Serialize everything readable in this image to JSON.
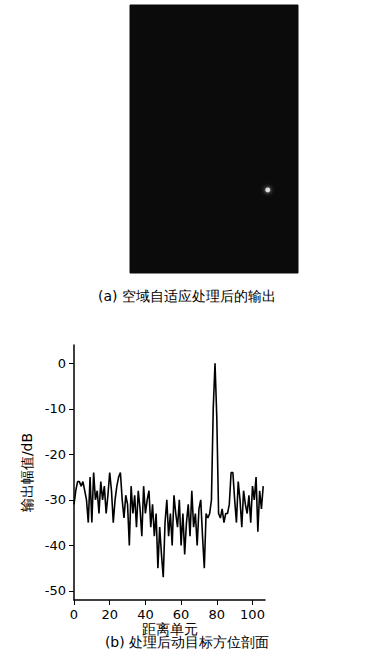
{
  "chart_data": [
    {
      "type": "scatter",
      "title": "(a) 空域自适应处理后的输出",
      "x": [
        82
      ],
      "values": [
        31
      ],
      "xlim": [
        0,
        100
      ],
      "ylim": [
        0,
        100
      ],
      "tick_labels": false,
      "grid": false,
      "color": "#ffffff"
    },
    {
      "type": "line",
      "title": "(b) 处理后动目标方位剖面",
      "x_label": "距离单元",
      "y_label": "输出幅值/dB",
      "x": [
        0,
        1,
        2,
        3,
        4,
        5,
        6,
        7,
        8,
        9,
        10,
        11,
        12,
        13,
        14,
        15,
        16,
        17,
        18,
        19,
        20,
        21,
        22,
        23,
        24,
        25,
        26,
        27,
        28,
        29,
        30,
        31,
        32,
        33,
        34,
        35,
        36,
        37,
        38,
        39,
        40,
        41,
        42,
        43,
        44,
        45,
        46,
        47,
        48,
        49,
        50,
        51,
        52,
        53,
        54,
        55,
        56,
        57,
        58,
        59,
        60,
        61,
        62,
        63,
        64,
        65,
        66,
        67,
        68,
        69,
        70,
        71,
        72,
        73,
        74,
        75,
        76,
        77,
        78,
        79,
        80,
        81,
        82,
        83,
        84,
        85,
        86,
        87,
        88,
        89,
        90,
        91,
        92,
        93,
        94,
        95,
        96,
        97,
        98,
        99,
        100,
        101,
        102,
        103,
        104,
        105,
        106
      ],
      "values": [
        -31,
        -28,
        -26,
        -26,
        -27,
        -26,
        -28,
        -30,
        -35,
        -25,
        -35,
        -24,
        -30,
        -28,
        -33,
        -26,
        -30,
        -27,
        -33,
        -29,
        -24,
        -28,
        -35,
        -30,
        -27,
        -25,
        -24,
        -30,
        -34,
        -29,
        -31,
        -40,
        -27,
        -33,
        -29,
        -36,
        -28,
        -32,
        -38,
        -27,
        -33,
        -30,
        -28,
        -36,
        -31,
        -38,
        -33,
        -45,
        -36,
        -42,
        -47,
        -35,
        -30,
        -38,
        -33,
        -40,
        -29,
        -33,
        -36,
        -30,
        -40,
        -33,
        -42,
        -35,
        -31,
        -38,
        -28,
        -36,
        -33,
        -40,
        -32,
        -30,
        -38,
        -45,
        -33,
        -34,
        -33,
        -30,
        -10,
        0,
        -12,
        -33,
        -34,
        -32,
        -35,
        -33,
        -33,
        -31,
        -24,
        -24,
        -30,
        -35,
        -26,
        -30,
        -36,
        -28,
        -31,
        -33,
        -29,
        -35,
        -27,
        -30,
        -25,
        -37,
        -28,
        -32,
        -27
      ],
      "xlim": [
        0,
        107
      ],
      "ylim": [
        -52,
        4
      ],
      "xticks": [
        0,
        20,
        40,
        60,
        80,
        100
      ],
      "yticks": [
        -50,
        -40,
        -30,
        -20,
        -10,
        0
      ],
      "grid": false,
      "color": "#000000"
    }
  ]
}
